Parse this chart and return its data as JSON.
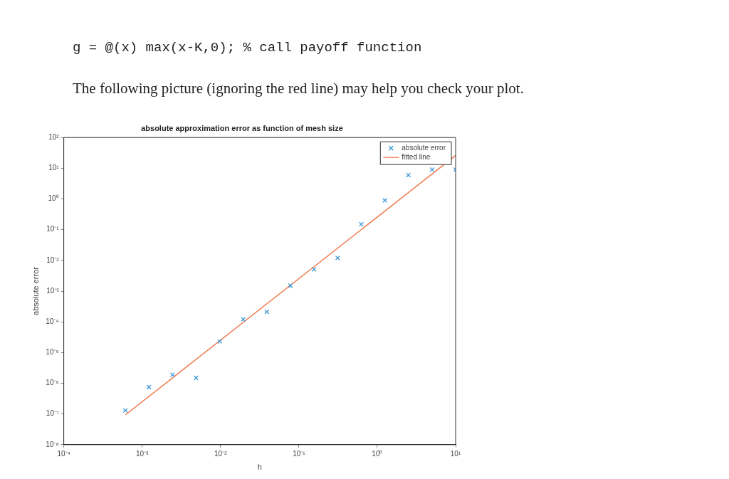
{
  "chart_data": {
    "type": "scatter",
    "title": "absolute approximation error as function of mesh size",
    "xlabel": "h",
    "ylabel": "absolute error",
    "annotations": [
      "g = @(x) max(x-K,0); % call payoff function",
      "The following picture (ignoring the red line) may help you check your plot."
    ],
    "log": "xy",
    "grid": false,
    "legend": "top right",
    "marker": "cross",
    "xlim": [
      0.0001,
      10
    ],
    "xticks": [
      {
        "value": 0.0001,
        "label": "10⁻⁴"
      },
      {
        "value": 0.001,
        "label": "10⁻³"
      },
      {
        "value": 0.01,
        "label": "10⁻²"
      },
      {
        "value": 0.1,
        "label": "10⁻¹"
      },
      {
        "value": 1,
        "label": "10⁰"
      },
      {
        "value": 10,
        "label": "10¹"
      }
    ],
    "ylim": [
      1e-08,
      100
    ],
    "yticks": [
      {
        "value": 1e-08,
        "label": "10⁻⁸"
      },
      {
        "value": 1e-07,
        "label": "10⁻⁷"
      },
      {
        "value": 1e-06,
        "label": "10⁻⁶"
      },
      {
        "value": 1e-05,
        "label": "10⁻⁵"
      },
      {
        "value": 0.0001,
        "label": "10⁻⁴"
      },
      {
        "value": 0.001,
        "label": "10⁻³"
      },
      {
        "value": 0.01,
        "label": "10⁻²"
      },
      {
        "value": 0.1,
        "label": "10⁻¹"
      },
      {
        "value": 1,
        "label": "10⁰"
      },
      {
        "value": 10,
        "label": "10¹"
      },
      {
        "value": 100,
        "label": "10²"
      }
    ],
    "series": [
      {
        "name": "absolute error",
        "type": "scatter",
        "color": "#3a96d6",
        "x": [
          0.00061,
          0.00122,
          0.00244,
          0.00488,
          0.00977,
          0.0195,
          0.039,
          0.078,
          0.156,
          0.3125,
          0.625,
          1.25,
          2.5,
          5,
          10
        ],
        "values": [
          1.3e-07,
          7.5e-07,
          1.9e-06,
          1.5e-06,
          2.3e-05,
          0.00012,
          0.00021,
          0.0015,
          0.0051,
          0.012,
          0.15,
          0.9,
          6,
          9,
          9
        ]
      },
      {
        "name": "fitted line",
        "type": "line",
        "color": "#f07a4e",
        "marker": "none",
        "x": [
          0.00061,
          10
        ],
        "values": [
          9.3e-08,
          26
        ]
      }
    ]
  }
}
